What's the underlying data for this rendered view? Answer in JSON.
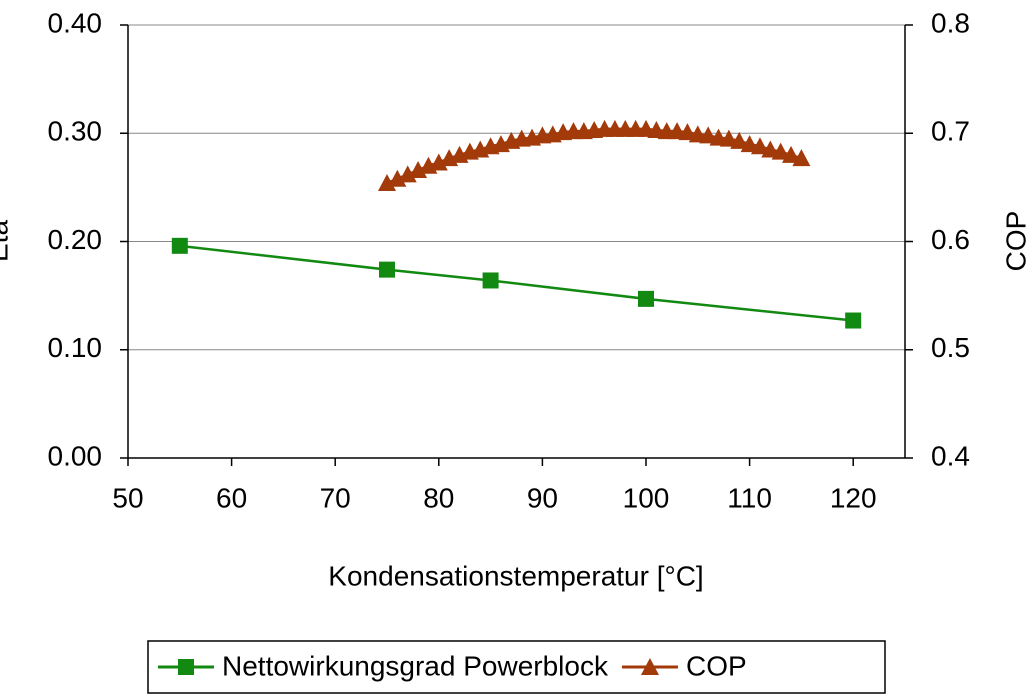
{
  "chart_data": {
    "type": "line",
    "xlabel": "Kondensationstemperatur [°C]",
    "ylabel": "Eta",
    "y2label": "COP",
    "xlim": [
      50,
      125
    ],
    "xticks": [
      50,
      60,
      70,
      80,
      90,
      100,
      110,
      120
    ],
    "ylim": [
      0,
      0.4
    ],
    "yticks": [
      {
        "value": 0,
        "label": "0.00"
      },
      {
        "value": 0.1,
        "label": "0.10"
      },
      {
        "value": 0.2,
        "label": "0.20"
      },
      {
        "value": 0.3,
        "label": "0.30"
      },
      {
        "value": 0.4,
        "label": "0.40"
      }
    ],
    "y2lim": [
      0.4,
      0.8
    ],
    "y2ticks": [
      0.4,
      0.5,
      0.6,
      0.7,
      0.8
    ],
    "grid": true,
    "legend": "bottom",
    "series": [
      {
        "name": "Nettowirkungsgrad Powerblock",
        "color": "#128a12",
        "marker": "square",
        "x": [
          55,
          75,
          85,
          100,
          120
        ],
        "values": [
          0.196,
          0.174,
          0.164,
          0.147,
          0.127
        ]
      },
      {
        "name": "COP",
        "color": "#a33a0a",
        "marker": "triangle",
        "axis": "y2",
        "x": [
          75,
          76,
          77,
          78,
          79,
          80,
          81,
          82,
          83,
          84,
          85,
          86,
          87,
          88,
          89,
          90,
          91,
          92,
          93,
          94,
          95,
          96,
          97,
          98,
          99,
          100,
          101,
          102,
          103,
          104,
          105,
          106,
          107,
          108,
          109,
          110,
          111,
          112,
          113,
          114,
          115
        ],
        "values": [
          0.654,
          0.658,
          0.662,
          0.666,
          0.67,
          0.673,
          0.677,
          0.68,
          0.683,
          0.685,
          0.688,
          0.69,
          0.693,
          0.695,
          0.696,
          0.698,
          0.699,
          0.701,
          0.702,
          0.702,
          0.703,
          0.704,
          0.704,
          0.704,
          0.704,
          0.704,
          0.703,
          0.702,
          0.702,
          0.701,
          0.699,
          0.698,
          0.696,
          0.695,
          0.693,
          0.69,
          0.688,
          0.685,
          0.683,
          0.68,
          0.677
        ]
      }
    ]
  }
}
